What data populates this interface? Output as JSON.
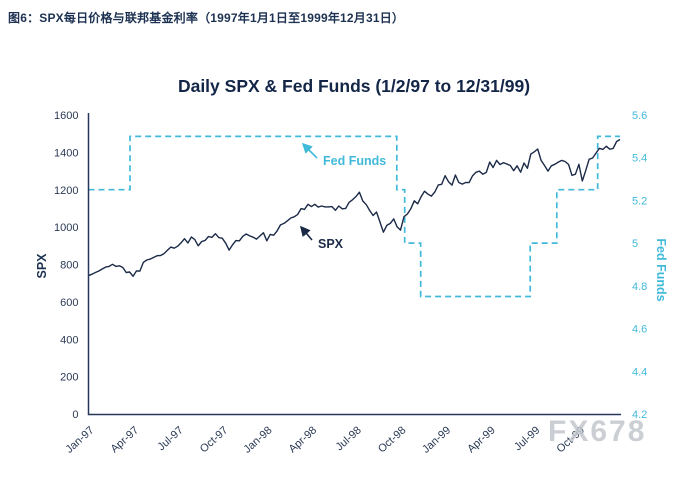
{
  "caption": "图6：SPX每日价格与联邦基金利率（1997年1月1日至1999年12月31日）",
  "watermark": "FX678",
  "chart_data": {
    "type": "line",
    "title": "Daily SPX & Fed Funds (1/2/97 to 12/31/99)",
    "ylabel_left": "SPX",
    "ylabel_right": "Fed Funds",
    "ylim_left": [
      0,
      1600
    ],
    "ylim_right": [
      4.2,
      5.6
    ],
    "grid": false,
    "legend": "none",
    "y_ticks_left": [
      "0",
      "200",
      "400",
      "600",
      "800",
      "1000",
      "1200",
      "1400",
      "1600"
    ],
    "y_ticks_right": [
      "4.2",
      "4.4",
      "4.6",
      "4.8",
      "5",
      "5.2",
      "5.4",
      "5.6"
    ],
    "x_ticks": [
      {
        "label": "Jan-97",
        "f": 0.0
      },
      {
        "label": "Apr-97",
        "f": 0.084
      },
      {
        "label": "Jul-97",
        "f": 0.168
      },
      {
        "label": "Oct-97",
        "f": 0.252
      },
      {
        "label": "Jan-98",
        "f": 0.335
      },
      {
        "label": "Apr-98",
        "f": 0.419
      },
      {
        "label": "Jul-98",
        "f": 0.503
      },
      {
        "label": "Oct-98",
        "f": 0.587
      },
      {
        "label": "Jan-99",
        "f": 0.671
      },
      {
        "label": "Apr-99",
        "f": 0.755
      },
      {
        "label": "Jul-99",
        "f": 0.839
      },
      {
        "label": "Oct-99",
        "f": 0.923
      }
    ],
    "annotations": {
      "fed": "Fed Funds",
      "spx": "SPX"
    },
    "colors": {
      "spx_line": "#1b2a47",
      "fed_line": "#41bada",
      "title": "#132647",
      "axis_text": "#2b3a55",
      "watermark": "#c3c7cd"
    },
    "series": [
      {
        "name": "SPX",
        "axis": "left",
        "style": "solid",
        "sampling": "weekly-approx",
        "values": [
          740,
          748,
          757,
          765,
          776,
          786,
          790,
          801,
          790,
          793,
          784,
          757,
          760,
          737,
          766,
          765,
          812,
          824,
          829,
          838,
          847,
          848,
          858,
          876,
          893,
          887,
          898,
          916,
          938,
          915,
          947,
          933,
          900,
          923,
          929,
          950,
          945,
          965,
          944,
          941,
          914,
          877,
          905,
          928,
          927,
          951,
          963,
          953,
          946,
          936,
          953,
          970,
          927,
          961,
          957,
          980,
          1012,
          1020,
          1034,
          1049,
          1055,
          1068,
          1099,
          1095,
          1122,
          1110,
          1122,
          1107,
          1113,
          1108,
          1108,
          1110,
          1090,
          1113,
          1098,
          1100,
          1133,
          1146,
          1164,
          1187,
          1140,
          1120,
          1089,
          1062,
          1081,
          1027,
          973,
          1009,
          1020,
          1044,
          1002,
          984,
          1056,
          1070,
          1098,
          1141,
          1125,
          1163,
          1192,
          1176,
          1166,
          1188,
          1226,
          1229,
          1275,
          1243,
          1225,
          1279,
          1239,
          1230,
          1239,
          1238,
          1275,
          1294,
          1299,
          1283,
          1293,
          1348,
          1319,
          1357,
          1335,
          1345,
          1338,
          1330,
          1302,
          1328,
          1294,
          1343,
          1315,
          1391,
          1403,
          1418,
          1357,
          1329,
          1300,
          1328,
          1336,
          1348,
          1357,
          1351,
          1335,
          1277,
          1283,
          1336,
          1247,
          1302,
          1363,
          1370,
          1396,
          1422,
          1416,
          1433,
          1417,
          1421,
          1458,
          1469
        ]
      },
      {
        "name": "Fed Funds",
        "axis": "right",
        "style": "dashed-step",
        "points": [
          {
            "f": 0.0,
            "rate": 5.25
          },
          {
            "f": 0.078,
            "rate": 5.5
          },
          {
            "f": 0.58,
            "rate": 5.25
          },
          {
            "f": 0.595,
            "rate": 5.0
          },
          {
            "f": 0.625,
            "rate": 4.75
          },
          {
            "f": 0.831,
            "rate": 5.0
          },
          {
            "f": 0.881,
            "rate": 5.25
          },
          {
            "f": 0.958,
            "rate": 5.5
          }
        ]
      }
    ]
  }
}
